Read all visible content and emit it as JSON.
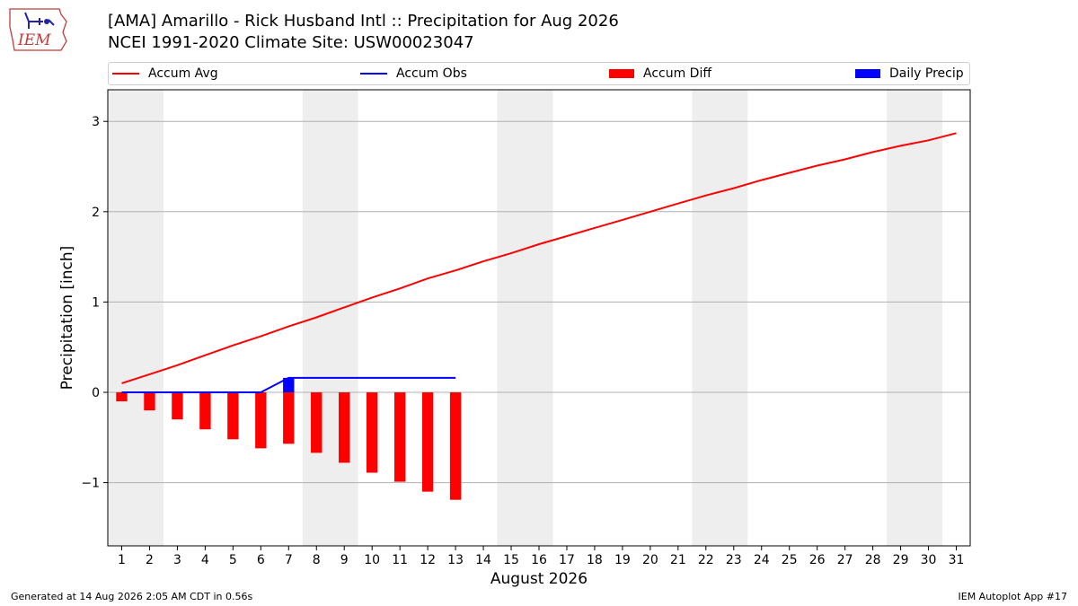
{
  "header": {
    "title_line1": "[AMA] Amarillo - Rick Husband Intl :: Precipitation for Aug 2026",
    "title_line2": "NCEI 1991-2020 Climate Site: USW00023047",
    "logo_text": "IEM"
  },
  "legend": [
    {
      "label": "Accum Avg",
      "kind": "line",
      "color": "#ff0000"
    },
    {
      "label": "Accum Obs",
      "kind": "line",
      "color": "#0000ff"
    },
    {
      "label": "Accum Diff",
      "kind": "bar",
      "color": "#ff0000"
    },
    {
      "label": "Daily Precip",
      "kind": "bar",
      "color": "#0000ff"
    }
  ],
  "footer": {
    "generated": "Generated at 14 Aug 2026 2:05 AM CDT in 0.56s",
    "app": "IEM Autoplot App #17"
  },
  "chart_data": {
    "type": "line",
    "xlabel": "August 2026",
    "ylabel": "Precipitation [inch]",
    "x": [
      1,
      2,
      3,
      4,
      5,
      6,
      7,
      8,
      9,
      10,
      11,
      12,
      13,
      14,
      15,
      16,
      17,
      18,
      19,
      20,
      21,
      22,
      23,
      24,
      25,
      26,
      27,
      28,
      29,
      30,
      31
    ],
    "xlim": [
      0.5,
      31.5
    ],
    "ylim": [
      -1.7,
      3.35
    ],
    "yticks": [
      -1,
      0,
      1,
      2,
      3
    ],
    "ytick_labels": [
      "−1",
      "0",
      "1",
      "2",
      "3"
    ],
    "grid": true,
    "weekend_shading": [
      [
        0.5,
        2.5
      ],
      [
        7.5,
        9.5
      ],
      [
        14.5,
        16.5
      ],
      [
        21.5,
        23.5
      ],
      [
        28.5,
        30.5
      ]
    ],
    "shading_color": "#eeeeee",
    "series": [
      {
        "name": "Accum Avg",
        "kind": "line",
        "color": "#ff0000",
        "values": [
          0.1,
          0.2,
          0.3,
          0.41,
          0.52,
          0.62,
          0.73,
          0.83,
          0.94,
          1.05,
          1.15,
          1.26,
          1.35,
          1.45,
          1.54,
          1.64,
          1.73,
          1.82,
          1.91,
          2.0,
          2.09,
          2.18,
          2.26,
          2.35,
          2.43,
          2.51,
          2.58,
          2.66,
          2.73,
          2.79,
          2.87
        ]
      },
      {
        "name": "Accum Obs",
        "kind": "line",
        "color": "#0000ff",
        "x": [
          1,
          2,
          3,
          4,
          5,
          6,
          7,
          8,
          9,
          10,
          11,
          12,
          13
        ],
        "values": [
          0,
          0,
          0,
          0,
          0,
          0,
          0.16,
          0.16,
          0.16,
          0.16,
          0.16,
          0.16,
          0.16
        ]
      },
      {
        "name": "Accum Diff",
        "kind": "bar",
        "color": "#ff0000",
        "x": [
          1,
          2,
          3,
          4,
          5,
          6,
          7,
          8,
          9,
          10,
          11,
          12,
          13
        ],
        "values": [
          -0.1,
          -0.2,
          -0.3,
          -0.41,
          -0.52,
          -0.62,
          -0.57,
          -0.67,
          -0.78,
          -0.89,
          -0.99,
          -1.1,
          -1.19
        ]
      },
      {
        "name": "Daily Precip",
        "kind": "bar",
        "color": "#0000ff",
        "x": [
          7
        ],
        "values": [
          0.16
        ]
      }
    ]
  }
}
